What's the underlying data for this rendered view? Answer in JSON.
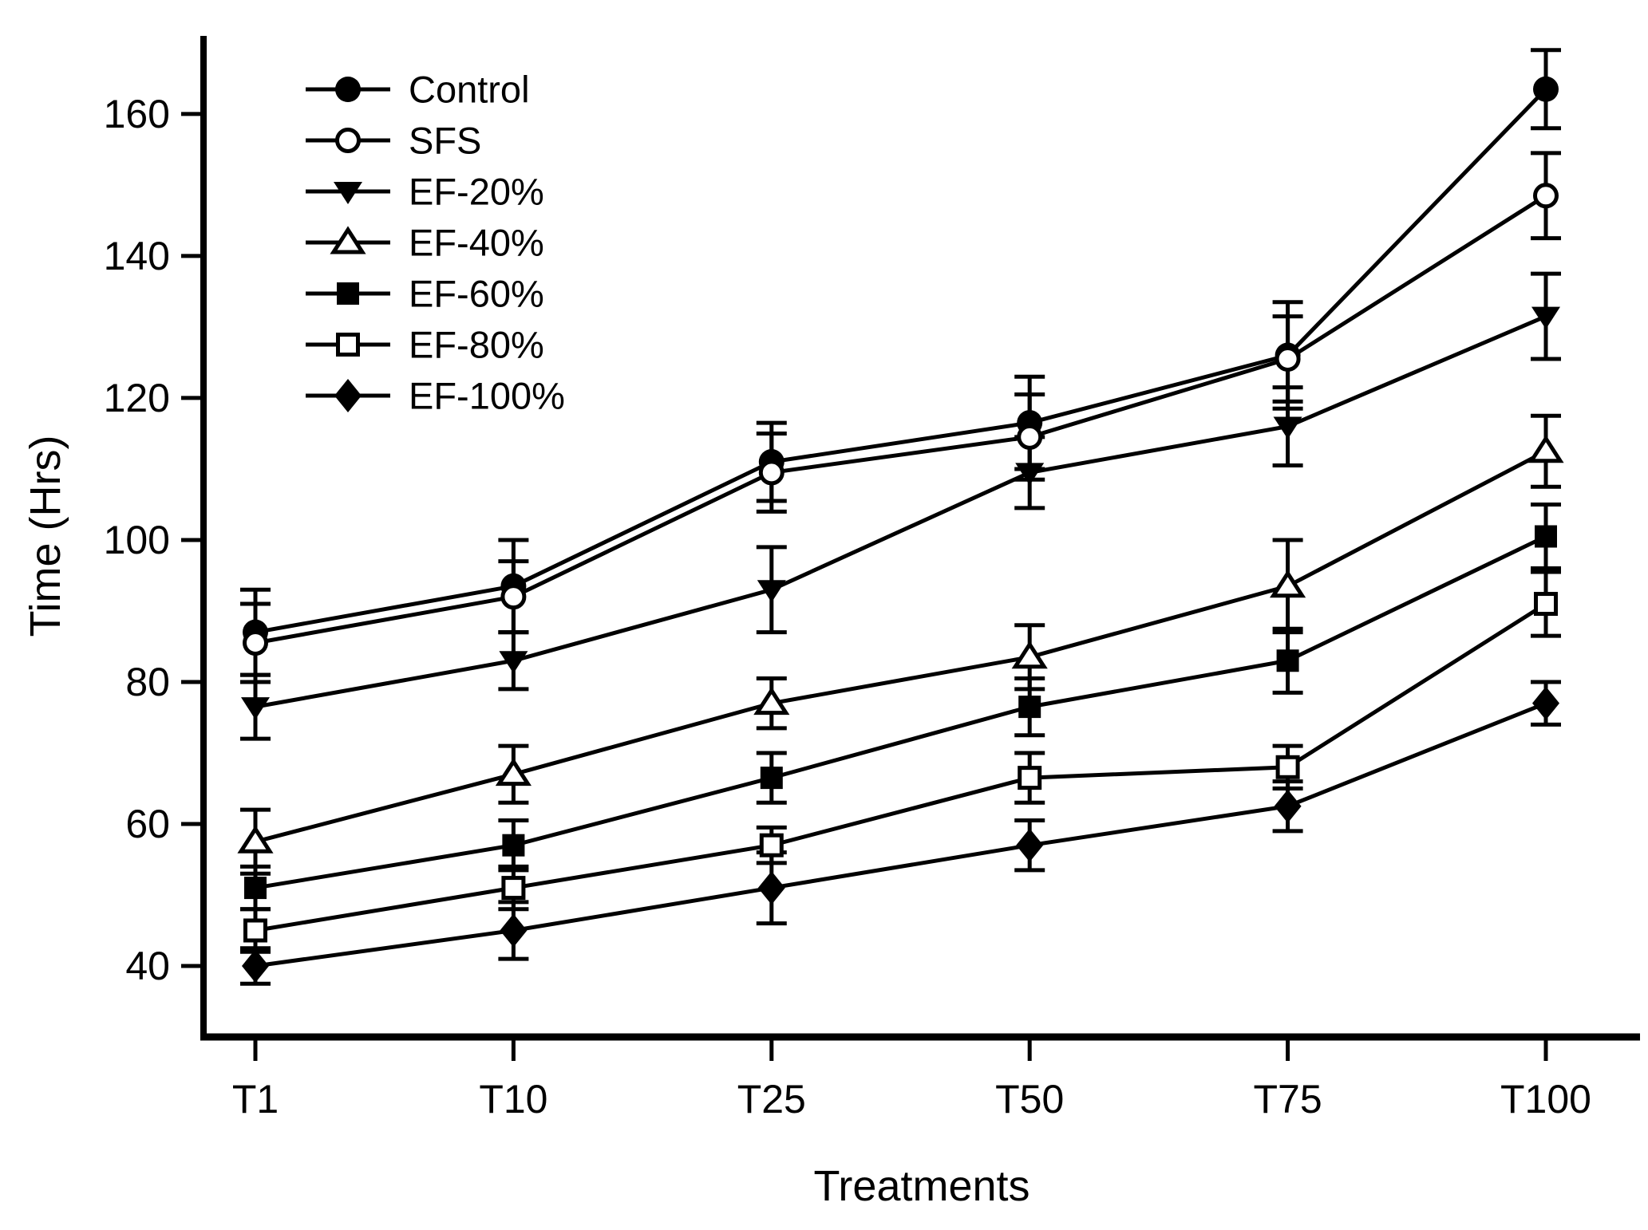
{
  "figure": {
    "background_color": "#ffffff",
    "ink_color": "#000000"
  },
  "chart_data": {
    "type": "line",
    "title": "",
    "xlabel": "Treatments",
    "ylabel": "Time (Hrs)",
    "categories": [
      "T1",
      "T10",
      "T25",
      "T50",
      "T75",
      "T100"
    ],
    "y_ticks": [
      40,
      60,
      80,
      100,
      120,
      140,
      160
    ],
    "ylim": [
      30,
      171
    ],
    "grid": false,
    "legend_position": "upper-left-inside",
    "error_bars": true,
    "series": [
      {
        "name": "Control",
        "marker": "circle-filled",
        "values": [
          87,
          93.5,
          111,
          116.5,
          126,
          163.5
        ],
        "errors": [
          6,
          6.5,
          5.5,
          6.5,
          7.5,
          5.5
        ]
      },
      {
        "name": "SFS",
        "marker": "circle-open",
        "values": [
          85.5,
          92,
          109.5,
          114.5,
          125.5,
          148.5
        ],
        "errors": [
          5.5,
          5,
          5.5,
          6,
          6,
          6
        ]
      },
      {
        "name": "EF-20%",
        "marker": "triangle-down-filled",
        "values": [
          76.5,
          83,
          93,
          109.5,
          116,
          131.5
        ],
        "errors": [
          4.5,
          4,
          6,
          5,
          5.5,
          6
        ]
      },
      {
        "name": "EF-40%",
        "marker": "triangle-up-open",
        "values": [
          57.5,
          67,
          77,
          83.5,
          93.5,
          112.5
        ],
        "errors": [
          4.5,
          4,
          3.5,
          4.5,
          6.5,
          5
        ]
      },
      {
        "name": "EF-60%",
        "marker": "square-filled",
        "values": [
          51,
          57,
          66.5,
          76.5,
          83,
          100.5
        ],
        "errors": [
          3,
          3.5,
          3.5,
          4,
          4.5,
          4.5
        ]
      },
      {
        "name": "EF-80%",
        "marker": "square-open",
        "values": [
          45,
          51,
          57,
          66.5,
          68,
          91
        ],
        "errors": [
          3,
          3,
          2.5,
          3.5,
          3,
          4.5
        ]
      },
      {
        "name": "EF-100%",
        "marker": "diamond-filled",
        "values": [
          40,
          45,
          51,
          57,
          62.5,
          77
        ],
        "errors": [
          2.5,
          4,
          5,
          3.5,
          3.5,
          3
        ]
      }
    ]
  }
}
